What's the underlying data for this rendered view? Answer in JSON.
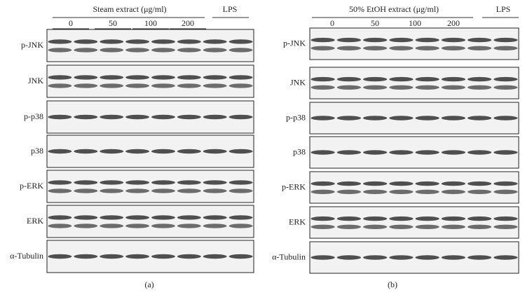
{
  "panels": [
    {
      "header": "Steam extract (μg/ml)",
      "lps": "LPS",
      "doses": [
        "0",
        "50",
        "100",
        "200"
      ],
      "rows": [
        "p-JNK",
        "JNK",
        "p-p38",
        "p38",
        "p-ERK",
        "ERK",
        "α-Tubulin"
      ],
      "caption": "(a)"
    },
    {
      "header": "50% EtOH extract (μg/ml)",
      "lps": "LPS",
      "doses": [
        "0",
        "50",
        "100",
        "200"
      ],
      "rows": [
        "p-JNK",
        "JNK",
        "p-p38",
        "p38",
        "p-ERK",
        "ERK",
        "α-Tubulin"
      ],
      "caption": "(b)"
    }
  ]
}
